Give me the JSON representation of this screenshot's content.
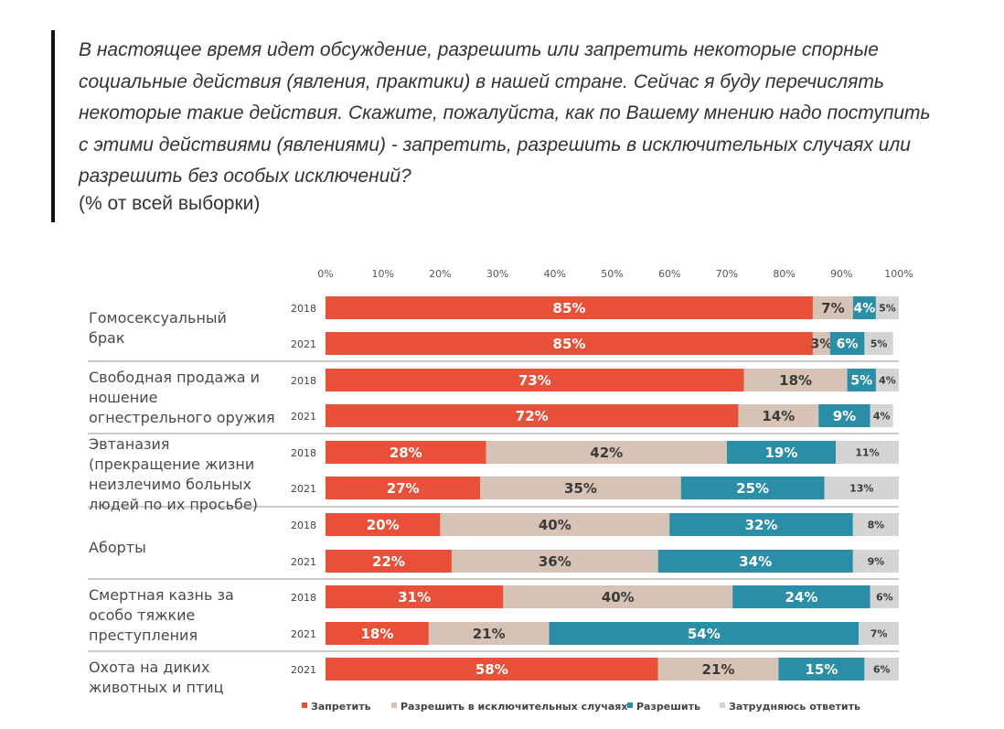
{
  "question": "В настоящее время идет обсуждение, разрешить или запретить некоторые спорные\nсоциальные действия (явления, практики) в нашей стране. Сейчас я буду перечислять\nнекоторые такие действия. Скажите, пожалуйста, как по Вашему мнению надо поступить\nс этими действиями (явлениями) - запретить, разрешить в исключительных случаях или\nразрешить без особых исключений?",
  "subtitle": "(% от всей выборки)",
  "chart_data": {
    "type": "bar",
    "orientation": "horizontal",
    "stacked": true,
    "xlim": [
      0,
      100
    ],
    "x_ticks": [
      "0%",
      "10%",
      "20%",
      "30%",
      "40%",
      "50%",
      "60%",
      "70%",
      "80%",
      "90%",
      "100%"
    ],
    "x_tick_position": "top",
    "legend_position": "bottom",
    "series_colors": [
      "#e8503a",
      "#d6c3b6",
      "#2a8ea6",
      "#d4d4d4"
    ],
    "series_names": [
      "Запретить",
      "Разрешить в исключительных случаях",
      "Разрешить",
      "Затрудняюсь ответить"
    ],
    "groups": [
      {
        "category": [
          "Гомосексуальный",
          "брак"
        ],
        "bars": [
          {
            "year": "2018",
            "values": [
              85,
              7,
              4,
              5
            ],
            "labels": [
              "85%",
              "7%",
              "4%",
              "5%"
            ]
          },
          {
            "year": "2021",
            "values": [
              85,
              3,
              6,
              5
            ],
            "labels": [
              "85%",
              "3%",
              "6%",
              "5%"
            ]
          }
        ]
      },
      {
        "category": [
          "Свободная продажа и",
          "ношение",
          "огнестрельного оружия"
        ],
        "bars": [
          {
            "year": "2018",
            "values": [
              73,
              18,
              5,
              4
            ],
            "labels": [
              "73%",
              "18%",
              "5%",
              "4%"
            ]
          },
          {
            "year": "2021",
            "values": [
              72,
              14,
              9,
              4
            ],
            "labels": [
              "72%",
              "14%",
              "9%",
              "4%"
            ]
          }
        ]
      },
      {
        "category": [
          "Эвтаназия",
          "(прекращение жизни",
          "неизлечимо больных",
          "людей по их просьбе)"
        ],
        "bars": [
          {
            "year": "2018",
            "values": [
              28,
              42,
              19,
              11
            ],
            "labels": [
              "28%",
              "42%",
              "19%",
              "11%"
            ]
          },
          {
            "year": "2021",
            "values": [
              27,
              35,
              25,
              13
            ],
            "labels": [
              "27%",
              "35%",
              "25%",
              "13%"
            ]
          }
        ]
      },
      {
        "category": [
          "Аборты"
        ],
        "bars": [
          {
            "year": "2018",
            "values": [
              20,
              40,
              32,
              8
            ],
            "labels": [
              "20%",
              "40%",
              "32%",
              "8%"
            ]
          },
          {
            "year": "2021",
            "values": [
              22,
              36,
              34,
              9
            ],
            "labels": [
              "22%",
              "36%",
              "34%",
              "9%"
            ]
          }
        ]
      },
      {
        "category": [
          "Смертная казнь за",
          "особо тяжкие",
          "преступления"
        ],
        "bars": [
          {
            "year": "2018",
            "values": [
              31,
              40,
              24,
              6
            ],
            "labels": [
              "31%",
              "40%",
              "24%",
              "6%"
            ]
          },
          {
            "year": "2021",
            "values": [
              18,
              21,
              54,
              7
            ],
            "labels": [
              "18%",
              "21%",
              "54%",
              "7%"
            ]
          }
        ]
      },
      {
        "category": [
          "Охота на диких",
          "животных и птиц"
        ],
        "bars": [
          {
            "year": "2021",
            "values": [
              58,
              21,
              15,
              6
            ],
            "labels": [
              "58%",
              "21%",
              "15%",
              "6%"
            ]
          }
        ]
      }
    ]
  }
}
